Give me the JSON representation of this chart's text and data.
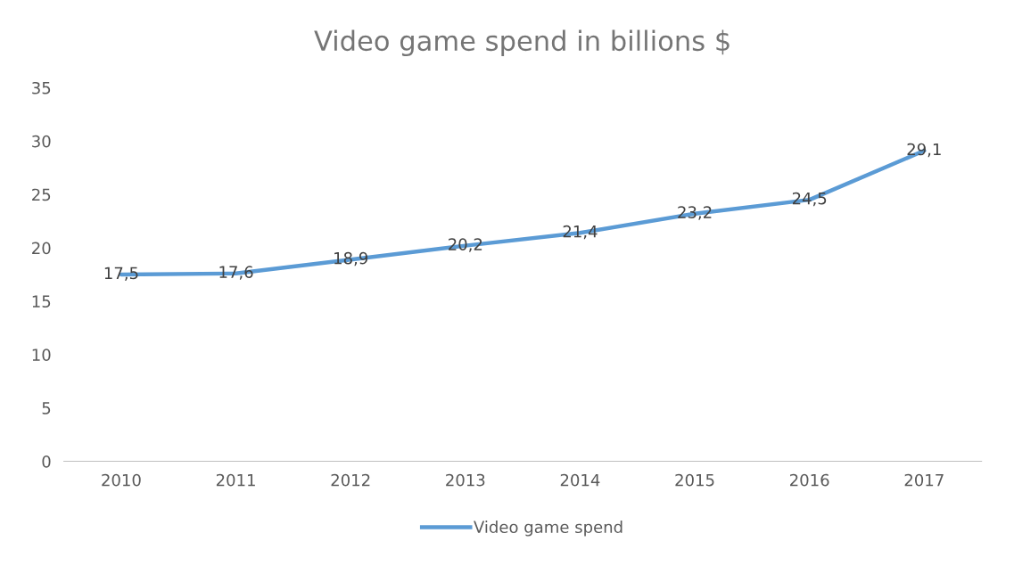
{
  "chart_data": {
    "type": "line",
    "title": "Video game spend in billions $",
    "categories": [
      "2010",
      "2011",
      "2012",
      "2013",
      "2014",
      "2015",
      "2016",
      "2017"
    ],
    "series": [
      {
        "name": "Video game spend",
        "color": "#5b9bd5",
        "values": [
          17.5,
          17.6,
          18.9,
          20.2,
          21.4,
          23.2,
          24.5,
          29.1
        ],
        "value_labels": [
          "17,5",
          "17,6",
          "18,9",
          "20,2",
          "21,4",
          "23,2",
          "24,5",
          "29,1"
        ]
      }
    ],
    "ylim": [
      0,
      35
    ],
    "yticks": [
      0,
      5,
      10,
      15,
      20,
      25,
      30,
      35
    ],
    "grid": false,
    "legend": "bottom",
    "marker": "none",
    "line_style": "solid"
  }
}
